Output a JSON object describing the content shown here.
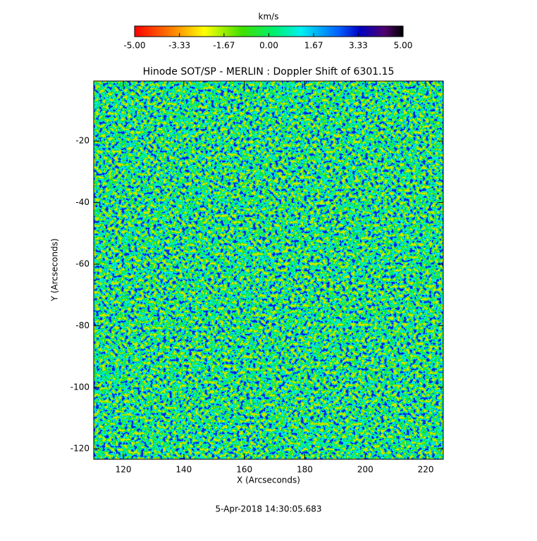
{
  "chart_data": {
    "type": "heatmap",
    "title": "Hinode SOT/SP - MERLIN : Doppler Shift of 6301.15",
    "x_label": "X (Arcseconds)",
    "y_label": "Y (Arcseconds)",
    "xlim": [
      110.2,
      225.8
    ],
    "ylim": [
      -123.4,
      -0.5
    ],
    "xticks": [
      120,
      140,
      160,
      180,
      200,
      220
    ],
    "yticks": [
      -20,
      -40,
      -60,
      -80,
      -100,
      -120
    ],
    "colorbar": {
      "label": "km/s",
      "lim": [
        -5,
        5
      ],
      "ticks": [
        {
          "value": -5,
          "label": "-5.00"
        },
        {
          "value": -3.33,
          "label": "-3.33"
        },
        {
          "value": -1.67,
          "label": "-1.67"
        },
        {
          "value": 0,
          "label": "0.00"
        },
        {
          "value": 1.67,
          "label": "1.67"
        },
        {
          "value": 3.33,
          "label": "3.33"
        },
        {
          "value": 5,
          "label": "5.00"
        }
      ]
    }
  },
  "footer": "5-Apr-2018 14:30:05.683"
}
